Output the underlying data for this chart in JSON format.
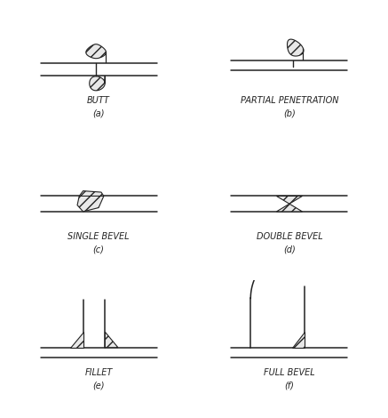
{
  "background_color": "#ffffff",
  "line_color": "#222222",
  "labels": [
    {
      "text": "BUTT",
      "sub": "(a)",
      "col": 0,
      "row": 0
    },
    {
      "text": "PARTIAL PENETRATION",
      "sub": "(b)",
      "col": 1,
      "row": 0
    },
    {
      "text": "SINGLE BEVEL",
      "sub": "(c)",
      "col": 0,
      "row": 1
    },
    {
      "text": "DOUBLE BEVEL",
      "sub": "(d)",
      "col": 1,
      "row": 1
    },
    {
      "text": "FILLET",
      "sub": "(e)",
      "col": 0,
      "row": 2
    },
    {
      "text": "FULL BEVEL",
      "sub": "(f)",
      "col": 1,
      "row": 2
    }
  ]
}
